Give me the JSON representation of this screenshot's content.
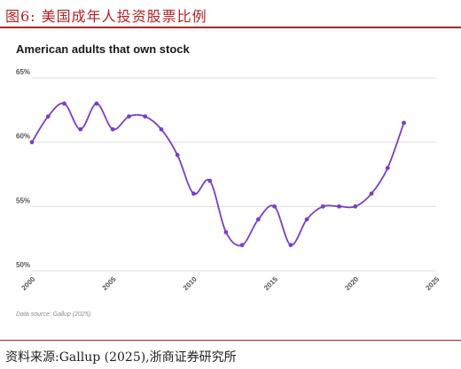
{
  "figure": {
    "label": "图6:  美国成年人投资股票比例",
    "source_note": "资料来源:Gallup (2025),浙商证券研究所"
  },
  "chart_data": {
    "type": "line",
    "title": "American adults that own stock",
    "xlabel": "",
    "ylabel": "",
    "x": [
      2000,
      2001,
      2002,
      2003,
      2004,
      2005,
      2006,
      2007,
      2008,
      2009,
      2010,
      2011,
      2012,
      2013,
      2014,
      2015,
      2016,
      2017,
      2018,
      2019,
      2020,
      2021,
      2022,
      2023
    ],
    "series": [
      {
        "values": [
          60,
          62,
          63,
          61,
          63,
          61,
          62,
          62,
          61,
          59,
          56,
          57,
          53,
          52,
          54,
          55,
          52,
          54,
          55,
          55,
          55,
          56,
          58,
          61.5
        ]
      }
    ],
    "xlim": [
      2000,
      2025
    ],
    "ylim": [
      50,
      65
    ],
    "xticks": [
      "2000",
      "2005",
      "2010",
      "2015",
      "2020",
      "2025"
    ],
    "yticks": [
      "65%",
      "60%",
      "55%",
      "50%"
    ],
    "grid": true,
    "line_color": "#7b3fc4",
    "data_source": "Data source: Gallup (2025)."
  }
}
